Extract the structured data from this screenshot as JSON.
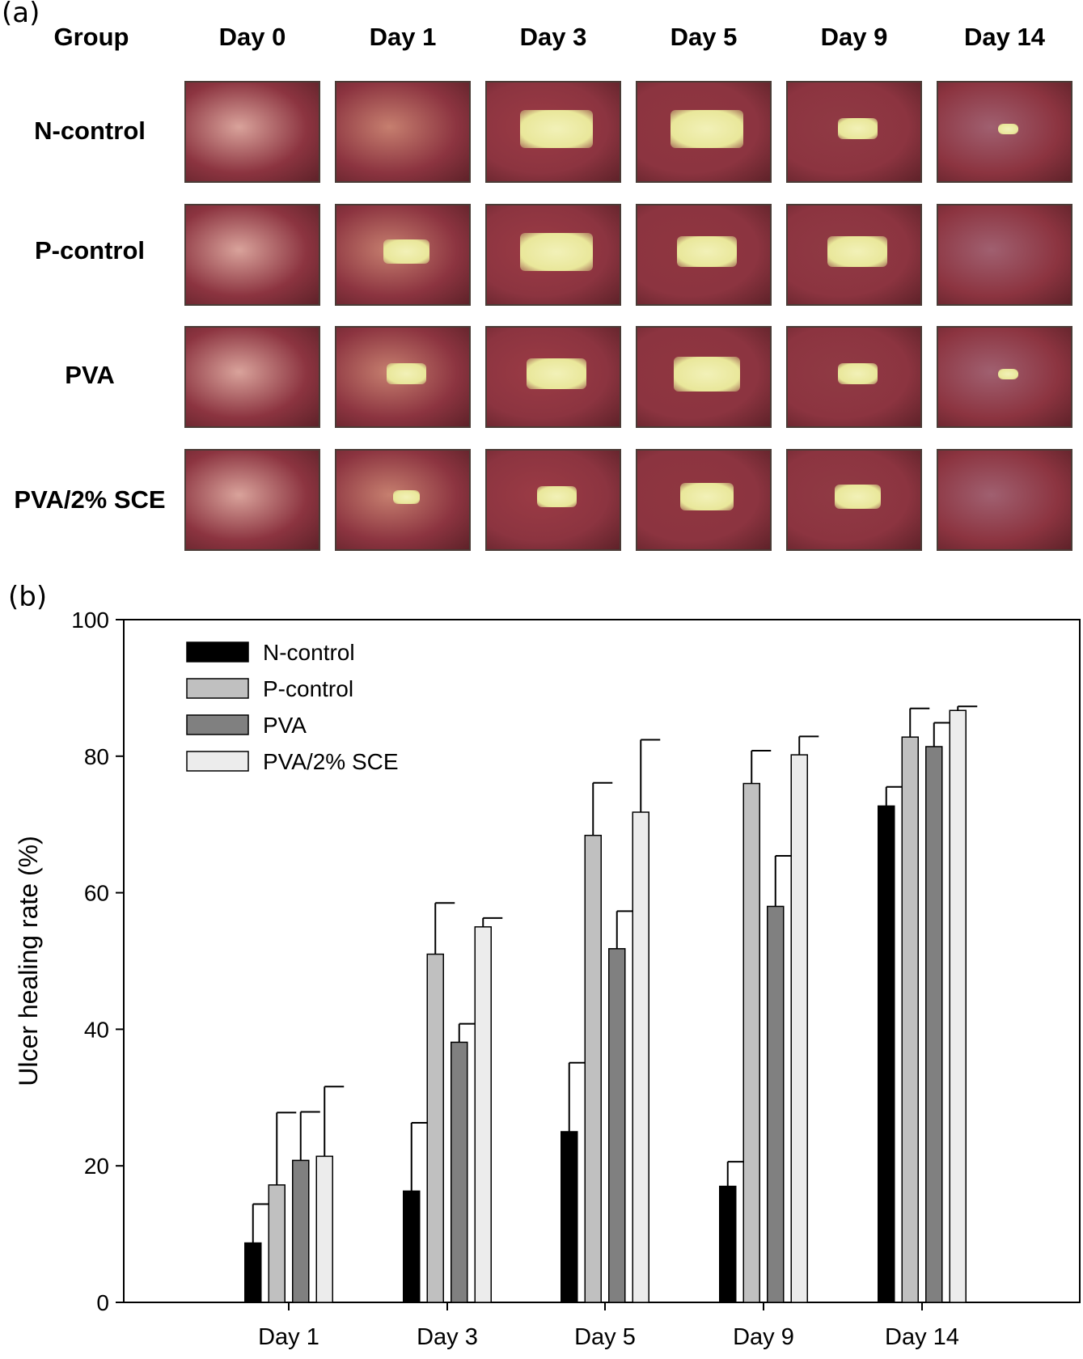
{
  "panel_a": {
    "label": "(a)",
    "group_header": "Group",
    "days": [
      "Day 0",
      "Day 1",
      "Day 3",
      "Day 5",
      "Day 9",
      "Day 14"
    ],
    "groups": [
      "N-control",
      "P-control",
      "PVA",
      "PVA/2% SCE"
    ],
    "photo_stage_colors": [
      "#d9a39b",
      "#c67f6f",
      "#9b3b45",
      "#8f3640",
      "#903a44",
      "#a06070"
    ],
    "lesion_colors": [
      "#e9e79a",
      "#f2f1b8"
    ]
  },
  "panel_b": {
    "label": "(b)"
  },
  "chart_data": {
    "type": "bar",
    "title": "",
    "xlabel": "",
    "ylabel": "Ulcer healing rate (%)",
    "ylim": [
      0,
      100
    ],
    "yticks": [
      0,
      20,
      40,
      60,
      80,
      100
    ],
    "categories": [
      "Day 1",
      "Day 3",
      "Day 5",
      "Day 9",
      "Day 14"
    ],
    "legend_position": "top-left",
    "series": [
      {
        "name": "N-control",
        "color": "#000000",
        "values": [
          8.7,
          16.3,
          25.0,
          17.0,
          72.7
        ],
        "errors": [
          5.7,
          10.0,
          10.1,
          3.6,
          2.8
        ]
      },
      {
        "name": "P-control",
        "color": "#c0c0c0",
        "values": [
          17.2,
          51.0,
          68.4,
          76.0,
          82.8
        ],
        "errors": [
          10.6,
          7.5,
          7.7,
          4.8,
          4.2
        ]
      },
      {
        "name": "PVA",
        "color": "#808080",
        "values": [
          20.8,
          38.1,
          51.8,
          58.0,
          81.4
        ],
        "errors": [
          7.1,
          2.7,
          5.5,
          7.4,
          3.5
        ]
      },
      {
        "name": "PVA/2% SCE",
        "color": "#ececec",
        "values": [
          21.4,
          55.0,
          71.8,
          80.2,
          86.7
        ],
        "errors": [
          10.2,
          1.3,
          10.6,
          2.7,
          0.6
        ]
      }
    ]
  }
}
